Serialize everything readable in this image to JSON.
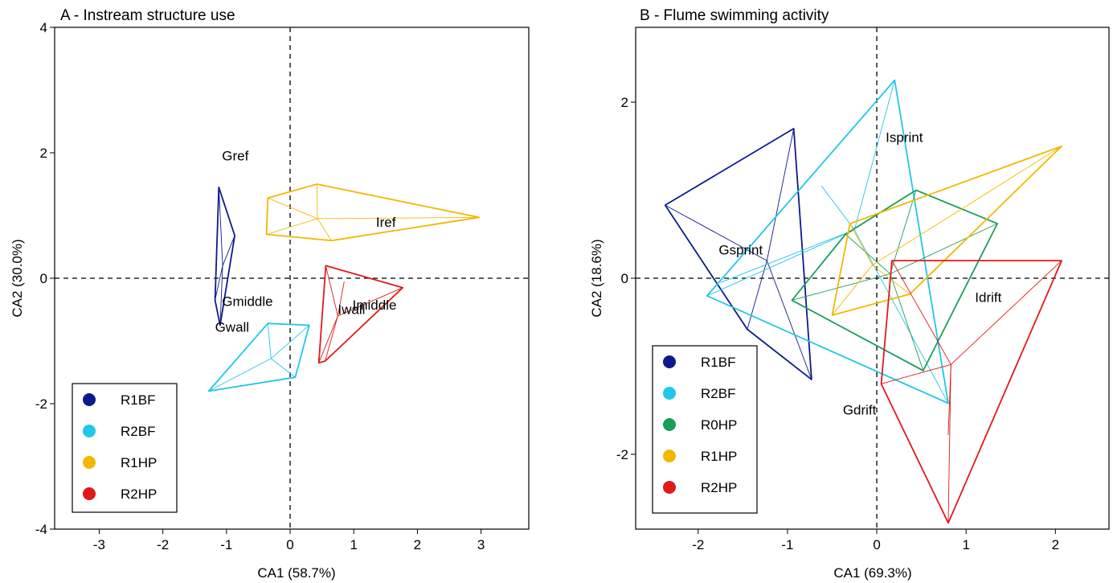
{
  "colors": {
    "R0HP": "#1a9e5a",
    "R1BF": "#0d1a8c",
    "R2BF": "#22c6e6",
    "R1HP": "#f2b800",
    "R2HP": "#e01a1a"
  },
  "chart_data": [
    {
      "type": "scatter",
      "title": "A - Instream structure use",
      "xlabel": "CA1 (58.7%)",
      "ylabel": "CA2 (30.0%)",
      "xlim": [
        -3.7,
        3.75
      ],
      "ylim": [
        -4,
        4
      ],
      "xticks": [
        -3,
        -2,
        -1,
        0,
        1,
        2,
        3
      ],
      "yticks": [
        -4,
        -2,
        0,
        2,
        4
      ],
      "grid": false,
      "reference_lines": "dashed lines at x=0 and y=0",
      "legend_position": "bottom-left",
      "legend": [
        "R1BF",
        "R2BF",
        "R1HP",
        "R2HP"
      ],
      "labels": [
        {
          "text": "Gref",
          "x": -1.07,
          "y": 1.88
        },
        {
          "text": "Iref",
          "x": 1.35,
          "y": 0.82
        },
        {
          "text": "Gmiddle",
          "x": -1.07,
          "y": -0.44
        },
        {
          "text": "Gwall",
          "x": -1.18,
          "y": -0.85
        },
        {
          "text": "Iwall",
          "x": 0.75,
          "y": -0.57
        },
        {
          "text": "Imiddle",
          "x": 0.98,
          "y": -0.5
        }
      ],
      "series": [
        {
          "name": "R1BF",
          "hull": [
            [
              -1.12,
              1.45
            ],
            [
              -0.87,
              0.68
            ],
            [
              -1.1,
              -0.75
            ],
            [
              -1.18,
              -0.35
            ]
          ],
          "centroid": [
            -1.06,
            0.2
          ],
          "spokes": [
            [
              -1.12,
              1.45
            ],
            [
              -0.87,
              0.68
            ],
            [
              -1.1,
              -0.75
            ],
            [
              -1.18,
              -0.35
            ]
          ]
        },
        {
          "name": "R2BF",
          "hull": [
            [
              -0.35,
              -0.72
            ],
            [
              0.3,
              -0.75
            ],
            [
              0.08,
              -1.58
            ],
            [
              -1.28,
              -1.8
            ]
          ],
          "centroid": [
            -0.3,
            -1.28
          ],
          "spokes": [
            [
              -0.35,
              -0.72
            ],
            [
              0.3,
              -0.75
            ],
            [
              0.08,
              -1.58
            ],
            [
              -1.28,
              -1.8
            ]
          ]
        },
        {
          "name": "R1HP",
          "hull": [
            [
              -0.35,
              1.28
            ],
            [
              0.42,
              1.5
            ],
            [
              2.97,
              0.97
            ],
            [
              0.65,
              0.6
            ],
            [
              -0.37,
              0.7
            ]
          ],
          "centroid": [
            0.43,
            0.95
          ],
          "spokes": [
            [
              -0.35,
              1.28
            ],
            [
              0.42,
              1.5
            ],
            [
              2.97,
              0.97
            ],
            [
              0.65,
              0.6
            ],
            [
              -0.37,
              0.7
            ]
          ]
        },
        {
          "name": "R2HP",
          "hull": [
            [
              0.56,
              0.2
            ],
            [
              1.77,
              -0.15
            ],
            [
              0.55,
              -1.32
            ],
            [
              0.45,
              -1.35
            ]
          ],
          "centroid": [
            0.75,
            -0.6
          ],
          "spokes": [
            [
              0.56,
              0.2
            ],
            [
              1.77,
              -0.15
            ],
            [
              0.55,
              -1.32
            ],
            [
              0.45,
              -1.35
            ],
            [
              0.85,
              -0.05
            ]
          ]
        }
      ]
    },
    {
      "type": "scatter",
      "title": "B - Flume swimming activity",
      "xlabel": "CA1 (69.3%)",
      "ylabel": "CA2 (18.6%)",
      "xlim": [
        -2.7,
        2.6
      ],
      "ylim": [
        -2.85,
        2.85
      ],
      "xticks": [
        -2,
        -1,
        0,
        1,
        2
      ],
      "yticks": [
        -2,
        0,
        2
      ],
      "grid": false,
      "reference_lines": "dashed lines at x=0 and y=0",
      "legend_position": "bottom-left",
      "legend": [
        "R1BF",
        "R2BF",
        "R0HP",
        "R1HP",
        "R2HP"
      ],
      "labels": [
        {
          "text": "Isprint",
          "x": 0.1,
          "y": 1.55
        },
        {
          "text": "Gsprint",
          "x": -1.77,
          "y": 0.27
        },
        {
          "text": "Idrift",
          "x": 1.1,
          "y": -0.27
        },
        {
          "text": "Gdrift",
          "x": -0.38,
          "y": -1.55
        }
      ],
      "series": [
        {
          "name": "R1BF",
          "hull": [
            [
              -2.37,
              0.83
            ],
            [
              -0.93,
              1.7
            ],
            [
              -0.73,
              -1.15
            ],
            [
              -1.45,
              -0.58
            ]
          ],
          "centroid": [
            -1.23,
            0.2
          ],
          "spokes": [
            [
              -2.37,
              0.83
            ],
            [
              -0.93,
              1.7
            ],
            [
              -0.73,
              -1.15
            ],
            [
              -1.45,
              -0.58
            ]
          ]
        },
        {
          "name": "R2BF",
          "hull": [
            [
              0.2,
              2.25
            ],
            [
              0.8,
              -1.42
            ],
            [
              -1.9,
              -0.2
            ]
          ],
          "centroid": [
            -0.25,
            0.55
          ],
          "spokes": [
            [
              0.2,
              2.25
            ],
            [
              0.8,
              -1.42
            ],
            [
              -1.9,
              -0.2
            ],
            [
              -0.62,
              1.05
            ],
            [
              -1.75,
              -0.05
            ]
          ]
        },
        {
          "name": "R0HP",
          "hull": [
            [
              0.44,
              1.0
            ],
            [
              1.35,
              0.62
            ],
            [
              0.52,
              -1.05
            ],
            [
              -0.95,
              -0.25
            ],
            [
              -0.35,
              0.5
            ]
          ],
          "centroid": [
            0.15,
            0.05
          ],
          "spokes": [
            [
              0.44,
              1.0
            ],
            [
              1.35,
              0.62
            ],
            [
              0.52,
              -1.05
            ],
            [
              -0.95,
              -0.25
            ],
            [
              -0.35,
              0.5
            ]
          ]
        },
        {
          "name": "R1HP",
          "hull": [
            [
              2.07,
              1.5
            ],
            [
              0.37,
              -0.18
            ],
            [
              -0.5,
              -0.42
            ],
            [
              -0.3,
              0.62
            ]
          ],
          "centroid": [
            -0.05,
            0.15
          ],
          "spokes": [
            [
              2.07,
              1.5
            ],
            [
              0.37,
              -0.18
            ],
            [
              -0.5,
              -0.42
            ],
            [
              -0.3,
              0.62
            ]
          ]
        },
        {
          "name": "R2HP",
          "hull": [
            [
              0.17,
              0.2
            ],
            [
              2.07,
              0.2
            ],
            [
              0.8,
              -2.78
            ],
            [
              0.05,
              -1.2
            ]
          ],
          "centroid": [
            0.83,
            -0.98
          ],
          "spokes": [
            [
              0.17,
              0.2
            ],
            [
              2.07,
              0.2
            ],
            [
              0.8,
              -2.78
            ],
            [
              0.05,
              -1.2
            ],
            [
              0.8,
              -1.78
            ]
          ]
        }
      ]
    }
  ]
}
